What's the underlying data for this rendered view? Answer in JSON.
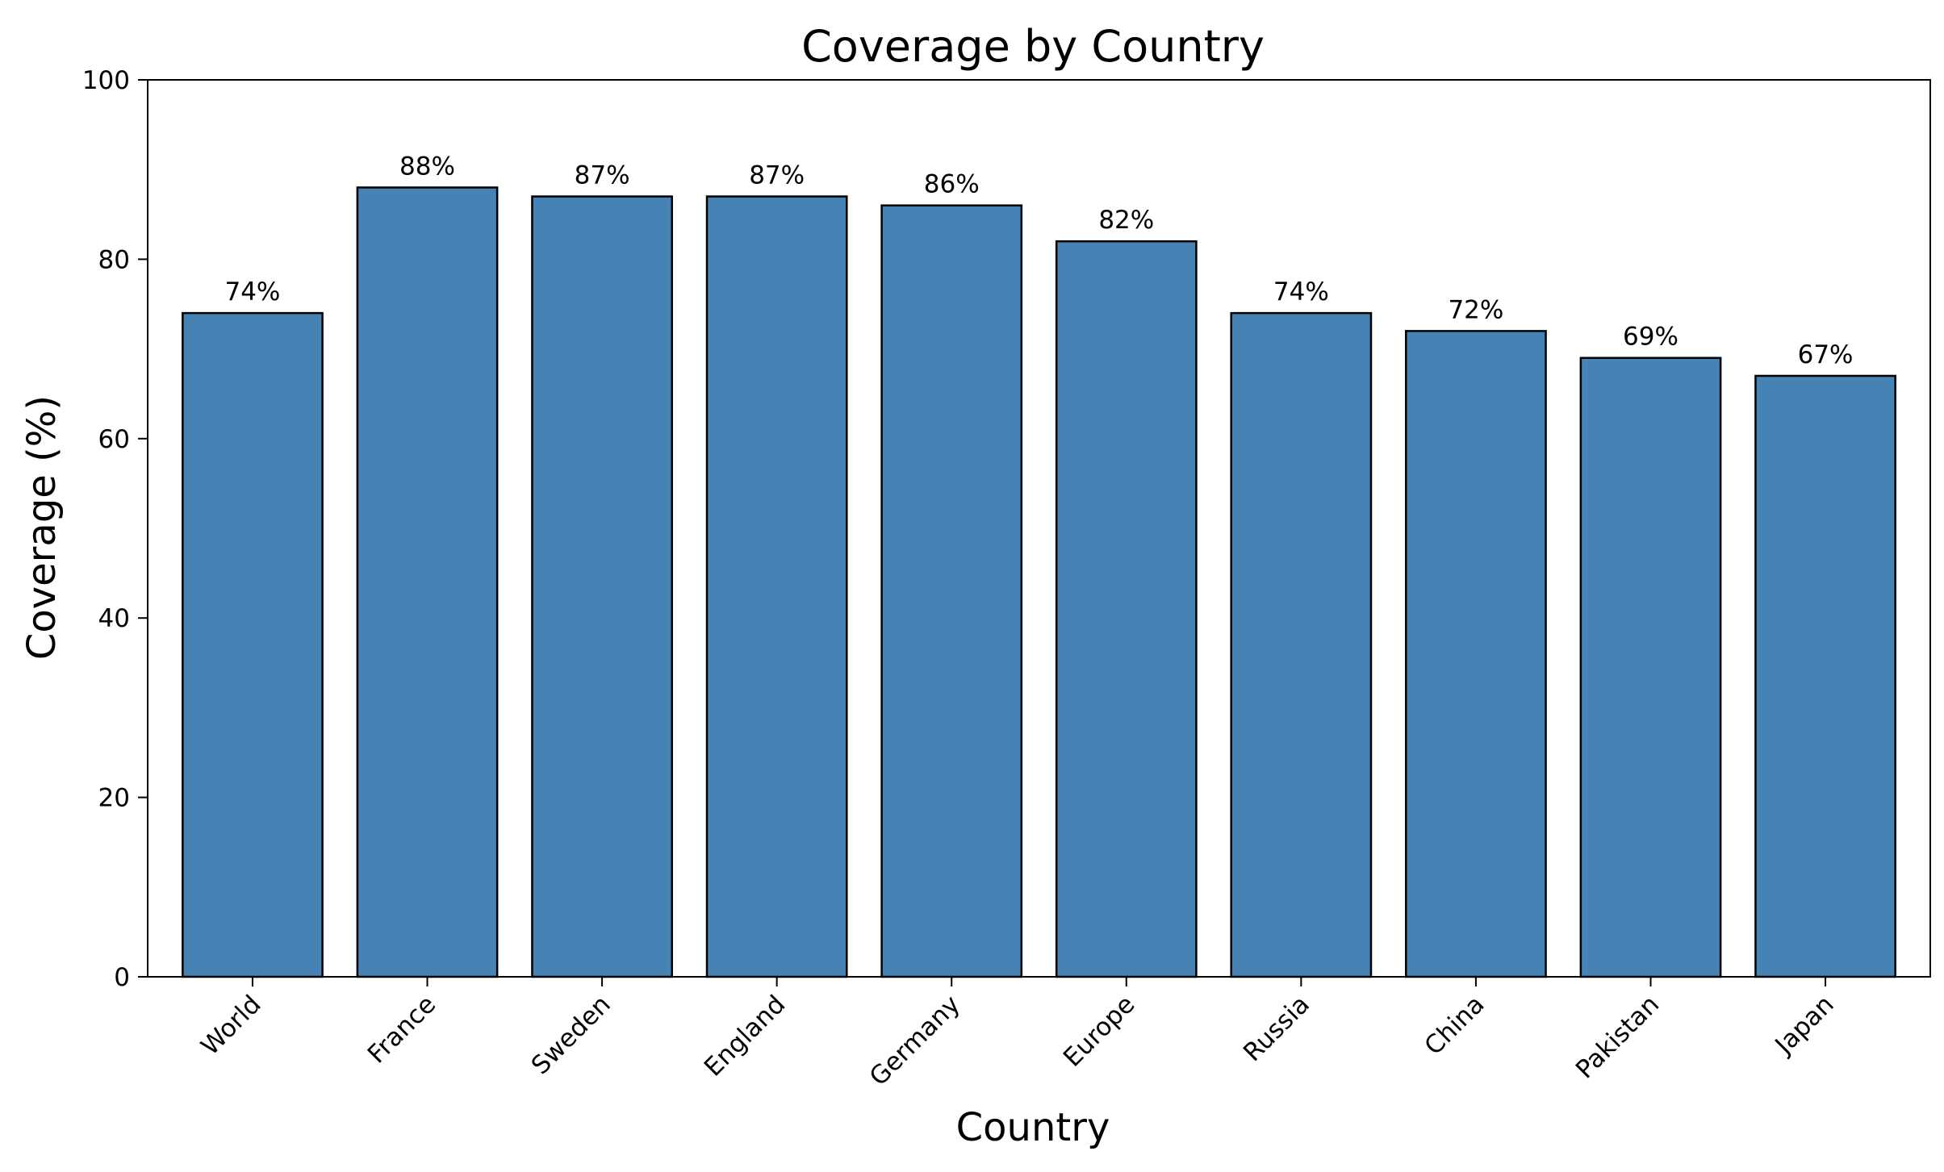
{
  "chart_data": {
    "type": "bar",
    "title": "Coverage by Country",
    "xlabel": "Country",
    "ylabel": "Coverage (%)",
    "categories": [
      "World",
      "France",
      "Sweden",
      "England",
      "Germany",
      "Europe",
      "Russia",
      "China",
      "Pakistan",
      "Japan"
    ],
    "values": [
      74,
      88,
      87,
      87,
      86,
      82,
      74,
      72,
      69,
      67
    ],
    "value_labels": [
      "74%",
      "88%",
      "87%",
      "87%",
      "86%",
      "82%",
      "74%",
      "72%",
      "69%",
      "67%"
    ],
    "ylim": [
      0,
      100
    ],
    "yticks": [
      0,
      20,
      40,
      60,
      80,
      100
    ],
    "grid": false,
    "bar_color": "#4682b4",
    "bar_edge_color": "#000000"
  }
}
